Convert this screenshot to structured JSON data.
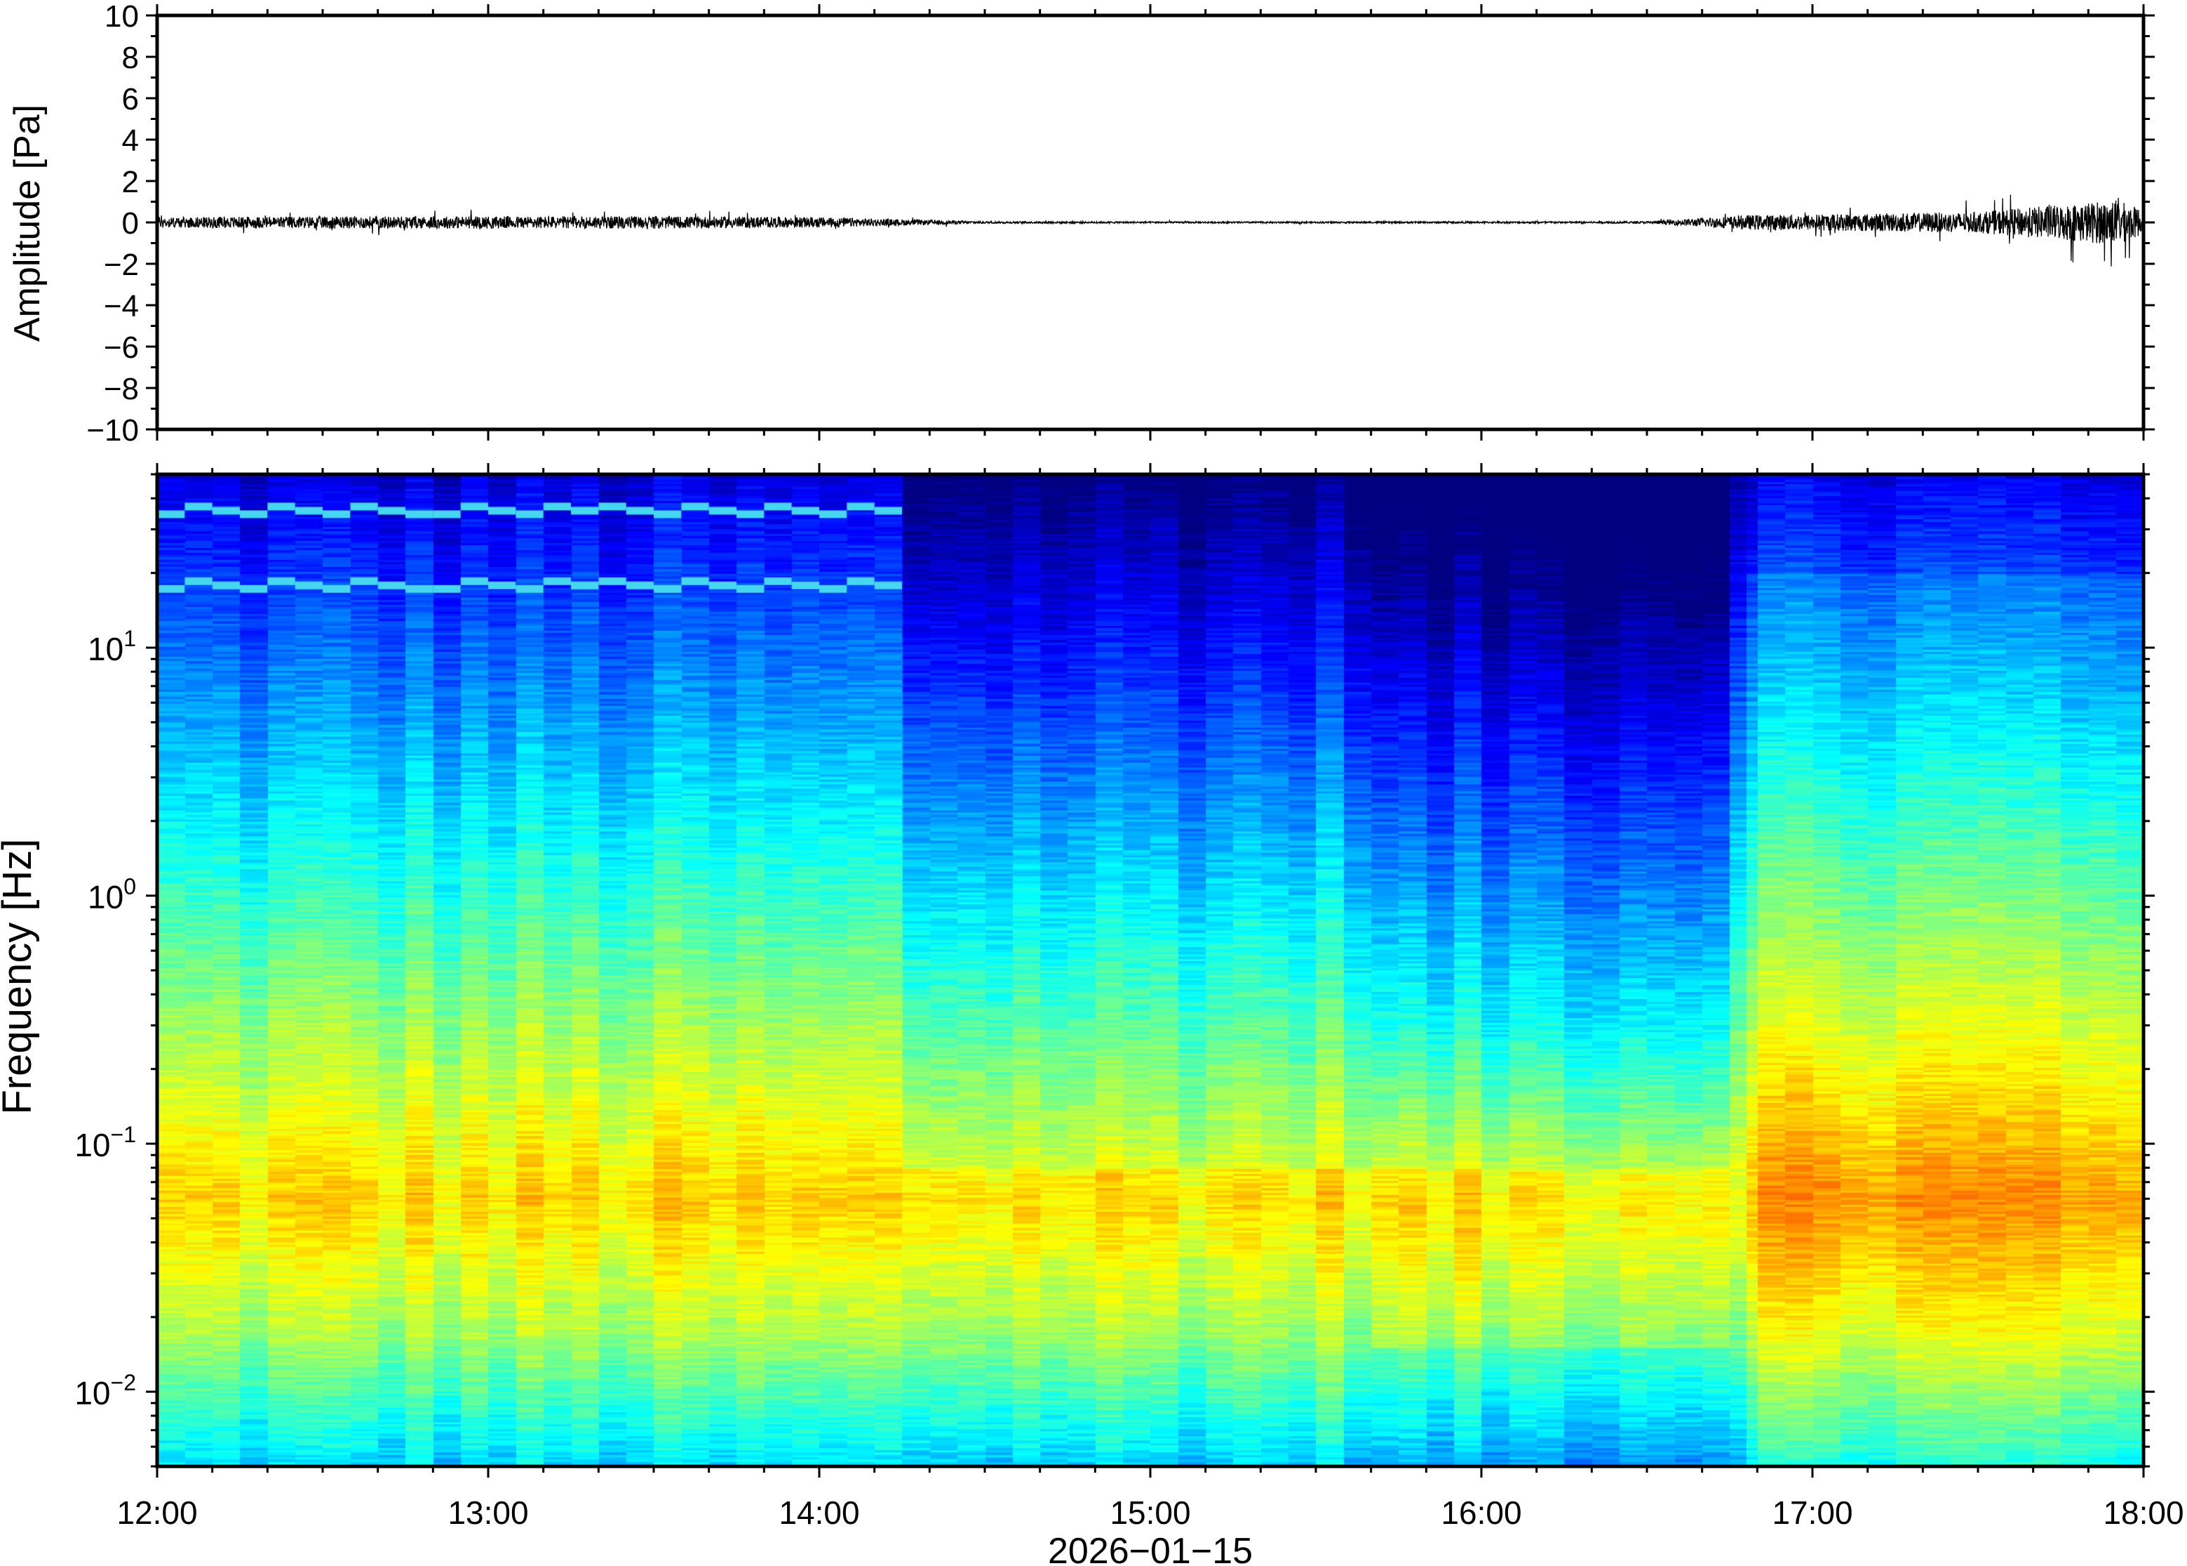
{
  "chart_data": [
    {
      "type": "line",
      "ylabel": "Amplitude [Pa]",
      "ylim": [
        -10,
        10
      ],
      "yticks": [
        -10,
        -8,
        -6,
        -4,
        -2,
        0,
        2,
        4,
        6,
        8,
        10
      ],
      "ytick_labels": [
        "−10",
        "−8",
        "−6",
        "−4",
        "−2",
        "0",
        "2",
        "4",
        "6",
        "8",
        "10"
      ],
      "xlim": [
        "12:00",
        "18:00"
      ],
      "envelope": [
        {
          "t": "12:00",
          "amp": 0.25
        },
        {
          "t": "12:30",
          "amp": 0.3
        },
        {
          "t": "13:00",
          "amp": 0.3
        },
        {
          "t": "13:30",
          "amp": 0.3
        },
        {
          "t": "14:00",
          "amp": 0.25
        },
        {
          "t": "14:30",
          "amp": 0.05
        },
        {
          "t": "15:00",
          "amp": 0.04
        },
        {
          "t": "15:30",
          "amp": 0.04
        },
        {
          "t": "16:00",
          "amp": 0.04
        },
        {
          "t": "16:30",
          "amp": 0.05
        },
        {
          "t": "16:48",
          "amp": 0.35
        },
        {
          "t": "17:00",
          "amp": 0.4
        },
        {
          "t": "17:30",
          "amp": 0.5
        },
        {
          "t": "17:55",
          "amp": 1.1
        },
        {
          "t": "18:00",
          "amp": 0.6
        }
      ]
    },
    {
      "type": "heatmap",
      "ylabel": "Frequency [Hz]",
      "yscale": "log",
      "ylim": [
        0.005,
        50
      ],
      "yticks": [
        {
          "value": 0.01,
          "base": "10",
          "exp": "−2"
        },
        {
          "value": 0.1,
          "base": "10",
          "exp": "−1"
        },
        {
          "value": 1,
          "base": "10",
          "exp": "0"
        },
        {
          "value": 10,
          "base": "10",
          "exp": "1"
        }
      ],
      "xlabel": "2026−01−15",
      "xlim": [
        "12:00",
        "18:00"
      ],
      "xtick_labels": [
        "12:00",
        "13:00",
        "14:00",
        "15:00",
        "16:00",
        "17:00",
        "18:00"
      ],
      "colormap": "jet",
      "tonal_lines": [
        {
          "frequency_hz": 36,
          "start": "12:00",
          "end": "14:12"
        },
        {
          "frequency_hz": 18,
          "start": "12:00",
          "end": "14:12"
        }
      ],
      "quiet_period": {
        "start": "15:40",
        "end": "16:45"
      }
    }
  ]
}
